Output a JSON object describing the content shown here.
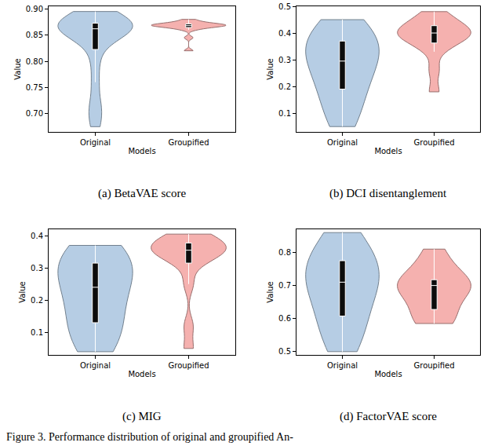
{
  "chart_data": [
    {
      "type": "violin",
      "title": "(a) BetaVAE score",
      "x_label": "Models",
      "y_label": "Value",
      "categories": [
        "Original",
        "Groupified"
      ],
      "colors": [
        "#b3cbe3",
        "#f5adab"
      ],
      "values": [
        [
          0.675,
          0.7,
          0.72,
          0.76,
          0.8,
          0.83,
          0.845,
          0.85,
          0.855,
          0.86,
          0.862,
          0.865,
          0.865,
          0.868,
          0.87,
          0.872,
          0.875,
          0.88,
          0.885,
          0.89,
          0.895
        ],
        [
          0.82,
          0.845,
          0.86,
          0.863,
          0.865,
          0.866,
          0.867,
          0.868,
          0.868,
          0.869,
          0.87,
          0.87,
          0.871,
          0.872,
          0.874,
          0.876,
          0.88
        ]
      ],
      "ylim": [
        0.665,
        0.905
      ],
      "yticks": [
        {
          "value": 0.7,
          "label": "0.70"
        },
        0.75,
        {
          "value": 0.8,
          "label": "0.80"
        },
        0.85,
        {
          "value": 0.9,
          "label": "0.90"
        }
      ],
      "grid": false
    },
    {
      "type": "violin",
      "title": "(b) DCI disentanglement",
      "x_label": "Models",
      "y_label": "Value",
      "categories": [
        "Original",
        "Groupified"
      ],
      "colors": [
        "#b3cbe3",
        "#f5adab"
      ],
      "values": [
        [
          0.05,
          0.08,
          0.12,
          0.16,
          0.19,
          0.21,
          0.24,
          0.27,
          0.29,
          0.3,
          0.32,
          0.34,
          0.36,
          0.37,
          0.39,
          0.41,
          0.43,
          0.45
        ],
        [
          0.18,
          0.26,
          0.33,
          0.36,
          0.37,
          0.38,
          0.39,
          0.4,
          0.4,
          0.41,
          0.42,
          0.43,
          0.44,
          0.46,
          0.48
        ]
      ],
      "ylim": [
        0.03,
        0.5
      ],
      "yticks": [
        0.1,
        0.2,
        0.3,
        0.4,
        0.5
      ],
      "grid": false
    },
    {
      "type": "violin",
      "title": "(c) MIG",
      "x_label": "Models",
      "y_label": "Value",
      "categories": [
        "Original",
        "Groupified"
      ],
      "colors": [
        "#b3cbe3",
        "#f5adab"
      ],
      "values": [
        [
          0.04,
          0.06,
          0.09,
          0.12,
          0.14,
          0.17,
          0.2,
          0.23,
          0.25,
          0.27,
          0.29,
          0.31,
          0.32,
          0.34,
          0.36,
          0.37
        ],
        [
          0.05,
          0.12,
          0.25,
          0.31,
          0.33,
          0.34,
          0.35,
          0.355,
          0.36,
          0.36,
          0.37,
          0.38,
          0.39,
          0.4,
          0.405
        ]
      ],
      "ylim": [
        0.03,
        0.42
      ],
      "yticks": [
        0.1,
        0.2,
        0.3,
        0.4
      ],
      "grid": false
    },
    {
      "type": "violin",
      "title": "(d) FactorVAE score",
      "x_label": "Models",
      "y_label": "Value",
      "categories": [
        "Original",
        "Groupified"
      ],
      "colors": [
        "#b3cbe3",
        "#f5adab"
      ],
      "values": [
        [
          0.5,
          0.53,
          0.57,
          0.6,
          0.63,
          0.66,
          0.69,
          0.71,
          0.72,
          0.74,
          0.76,
          0.78,
          0.8,
          0.83,
          0.86
        ],
        [
          0.585,
          0.59,
          0.6,
          0.62,
          0.65,
          0.68,
          0.69,
          0.7,
          0.7,
          0.705,
          0.71,
          0.72,
          0.75,
          0.78,
          0.81
        ]
      ],
      "ylim": [
        0.49,
        0.87
      ],
      "yticks": [
        0.5,
        0.6,
        0.7,
        0.8
      ],
      "grid": false
    }
  ],
  "caption": "Figure 3. Performance distribution of original and groupified An-"
}
